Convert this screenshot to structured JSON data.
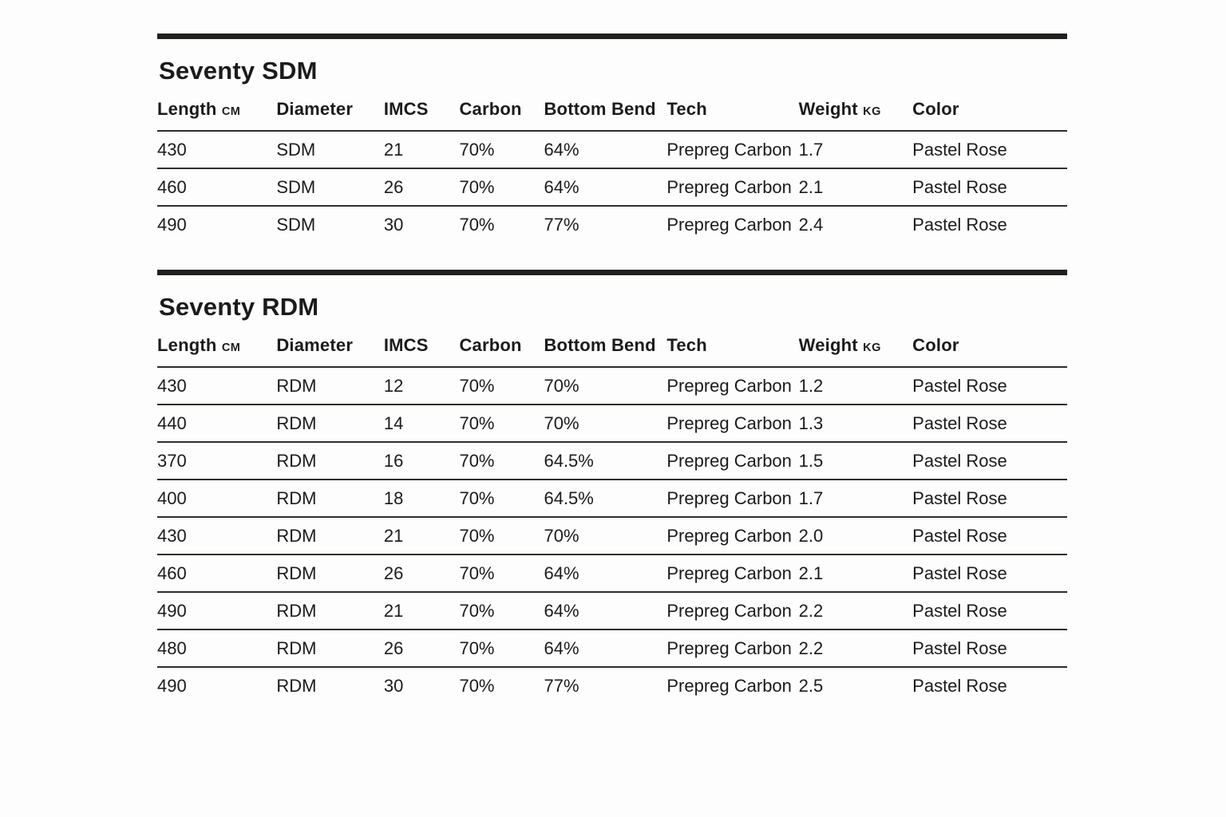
{
  "page": {
    "background_color": "#fdfdfd",
    "text_color": "#1b1b1b",
    "divider_color": "#2e2e2c",
    "section_bar_color": "#20201e"
  },
  "tables": [
    {
      "title": "Seventy SDM",
      "columns": [
        {
          "label": "Length",
          "unit": "CM"
        },
        {
          "label": "Diameter",
          "unit": ""
        },
        {
          "label": "IMCS",
          "unit": ""
        },
        {
          "label": "Carbon",
          "unit": ""
        },
        {
          "label": "Bottom Bend",
          "unit": ""
        },
        {
          "label": "Tech",
          "unit": ""
        },
        {
          "label": "Weight",
          "unit": "KG"
        },
        {
          "label": "Color",
          "unit": ""
        }
      ],
      "rows": [
        [
          "430",
          "SDM",
          "21",
          "70%",
          "64%",
          "Prepreg Carbon",
          "1.7",
          "Pastel Rose"
        ],
        [
          "460",
          "SDM",
          "26",
          "70%",
          "64%",
          "Prepreg Carbon",
          "2.1",
          "Pastel Rose"
        ],
        [
          "490",
          "SDM",
          "30",
          "70%",
          "77%",
          "Prepreg Carbon",
          "2.4",
          "Pastel Rose"
        ]
      ]
    },
    {
      "title": "Seventy RDM",
      "columns": [
        {
          "label": "Length",
          "unit": "CM"
        },
        {
          "label": "Diameter",
          "unit": ""
        },
        {
          "label": "IMCS",
          "unit": ""
        },
        {
          "label": "Carbon",
          "unit": ""
        },
        {
          "label": "Bottom Bend",
          "unit": ""
        },
        {
          "label": "Tech",
          "unit": ""
        },
        {
          "label": "Weight",
          "unit": "KG"
        },
        {
          "label": "Color",
          "unit": ""
        }
      ],
      "rows": [
        [
          "430",
          "RDM",
          "12",
          "70%",
          "70%",
          "Prepreg Carbon",
          "1.2",
          "Pastel Rose"
        ],
        [
          "440",
          "RDM",
          "14",
          "70%",
          "70%",
          "Prepreg Carbon",
          "1.3",
          "Pastel Rose"
        ],
        [
          "370",
          "RDM",
          "16",
          "70%",
          "64.5%",
          "Prepreg Carbon",
          "1.5",
          "Pastel Rose"
        ],
        [
          "400",
          "RDM",
          "18",
          "70%",
          "64.5%",
          "Prepreg Carbon",
          "1.7",
          "Pastel Rose"
        ],
        [
          "430",
          "RDM",
          "21",
          "70%",
          "70%",
          "Prepreg Carbon",
          "2.0",
          "Pastel Rose"
        ],
        [
          "460",
          "RDM",
          "26",
          "70%",
          "64%",
          "Prepreg Carbon",
          "2.1",
          "Pastel Rose"
        ],
        [
          "490",
          "RDM",
          "21",
          "70%",
          "64%",
          "Prepreg Carbon",
          "2.2",
          "Pastel Rose"
        ],
        [
          "480",
          "RDM",
          "26",
          "70%",
          "64%",
          "Prepreg Carbon",
          "2.2",
          "Pastel Rose"
        ],
        [
          "490",
          "RDM",
          "30",
          "70%",
          "77%",
          "Prepreg Carbon",
          "2.5",
          "Pastel Rose"
        ]
      ]
    }
  ]
}
